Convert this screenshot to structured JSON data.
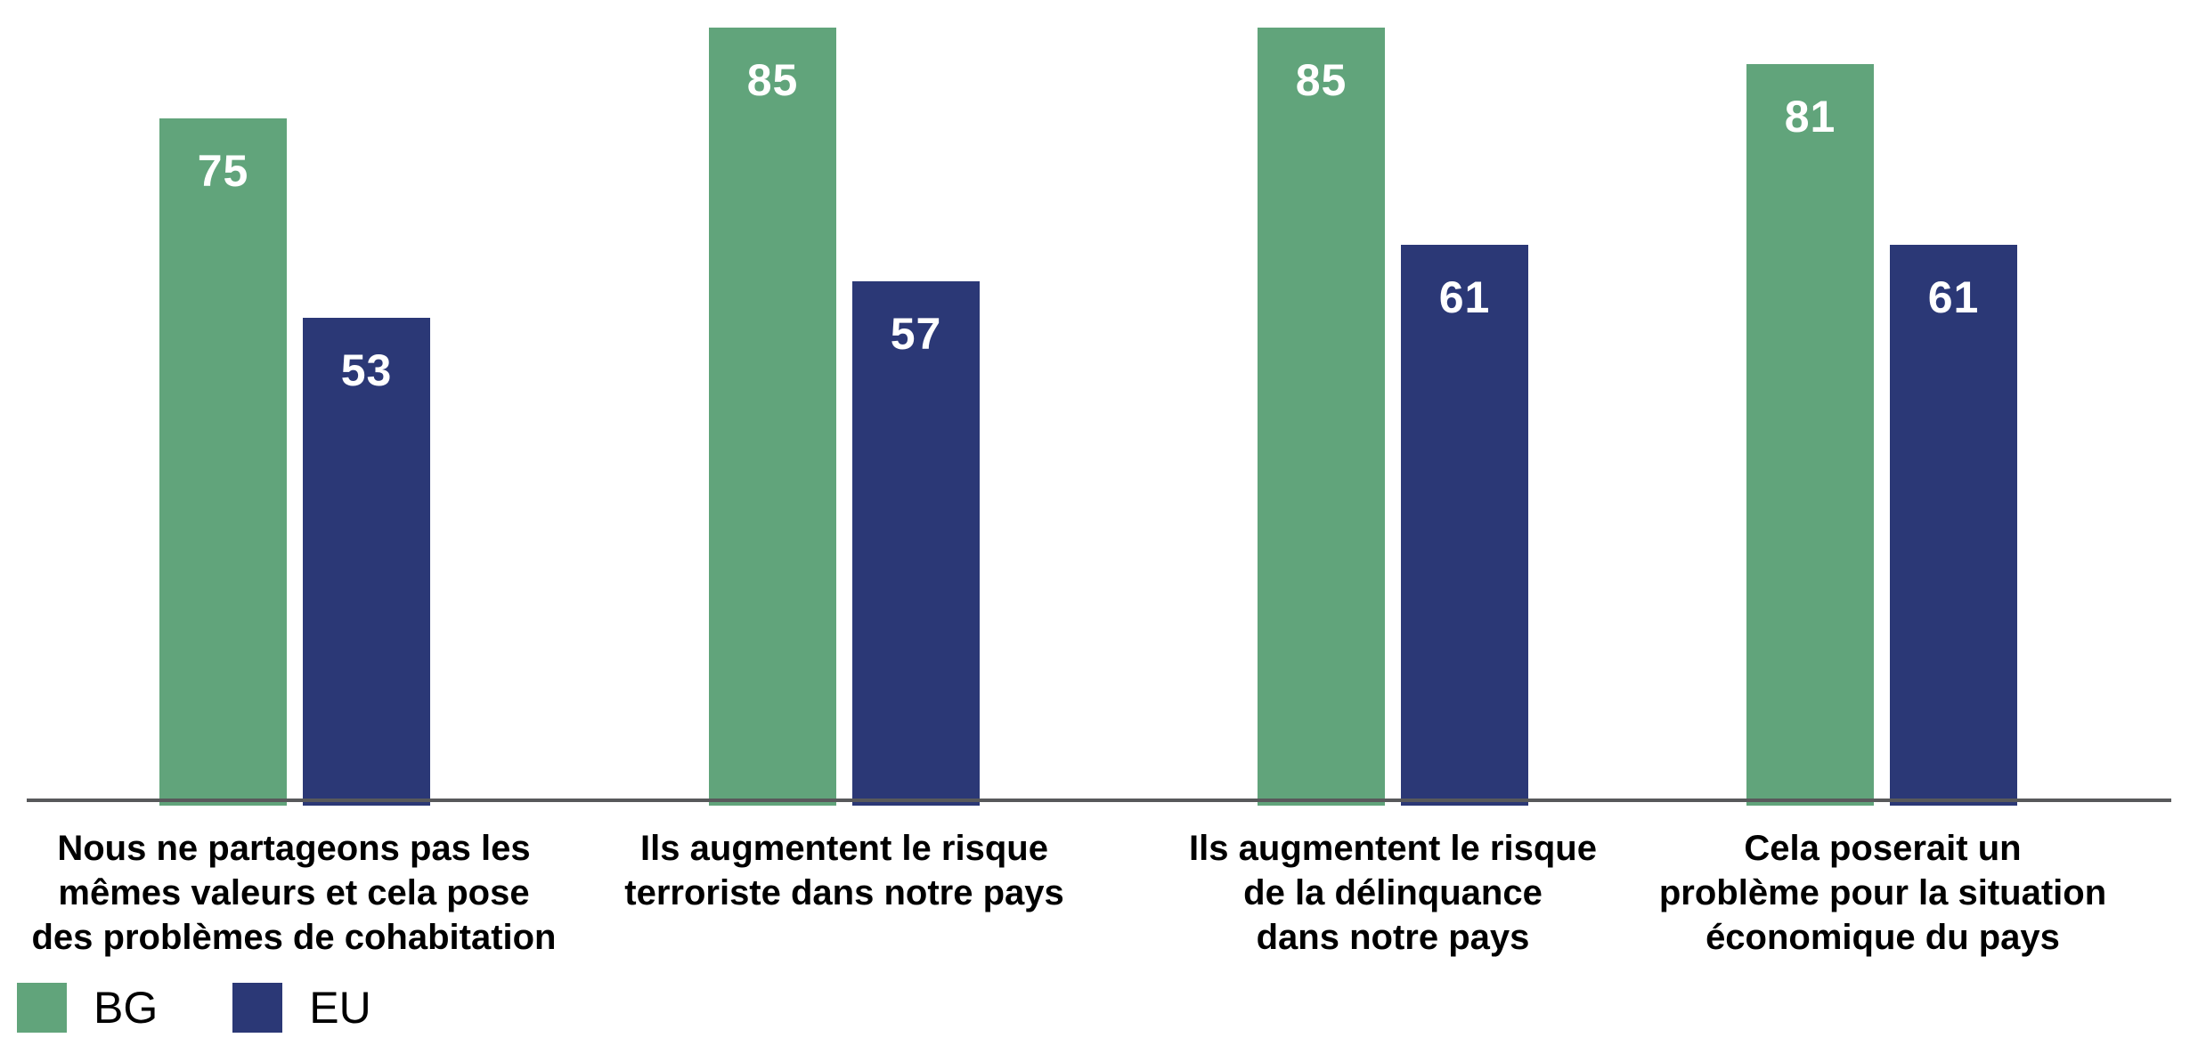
{
  "chart_data": {
    "type": "bar",
    "title": "",
    "xlabel": "",
    "ylabel": "",
    "grid": false,
    "value_labels_shown": true,
    "legend_position": "bottom-left",
    "ylim": [
      0,
      88
    ],
    "categories": [
      "Nous ne partageons pas les\nmêmes valeurs et cela pose\ndes problèmes de cohabitation",
      "Ils augmentent le risque\nterroriste dans notre pays",
      "Ils augmentent le risque\nde la délinquance\ndans notre pays",
      "Cela poserait un\nproblème pour la situation\néconomique du pays"
    ],
    "series": [
      {
        "name": "BG",
        "color": "#61A47B",
        "values": [
          75,
          85,
          85,
          81
        ]
      },
      {
        "name": "EU",
        "color": "#2B3876",
        "values": [
          53,
          57,
          61,
          61
        ]
      }
    ]
  },
  "legend": {
    "items": [
      {
        "label": "BG",
        "color": "#61A47B"
      },
      {
        "label": "EU",
        "color": "#2B3876"
      }
    ]
  },
  "colors": {
    "bg_green": "#61A47B",
    "eu_blue": "#2B3876",
    "axis_line": "#58595B",
    "value_text": "#FFFFFF",
    "label_text": "#000000"
  }
}
